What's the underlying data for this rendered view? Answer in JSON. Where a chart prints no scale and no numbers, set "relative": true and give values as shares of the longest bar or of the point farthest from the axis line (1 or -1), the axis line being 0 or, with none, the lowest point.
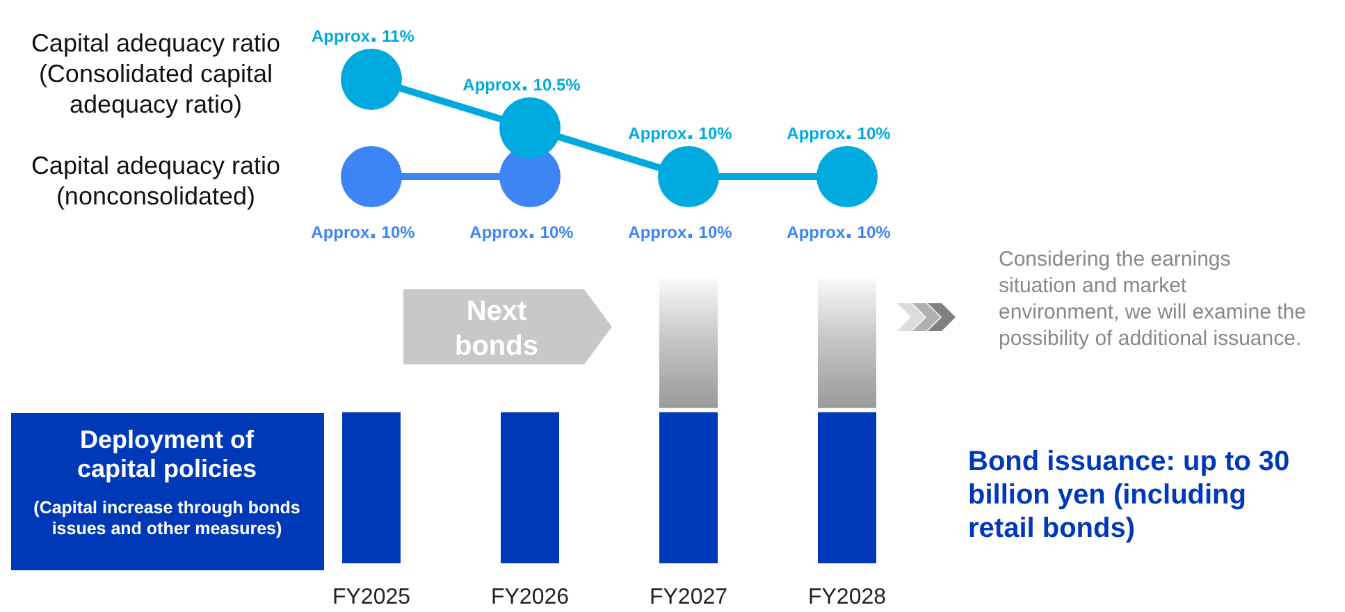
{
  "chart_data": [
    {
      "type": "line",
      "categories": [
        "FY2025",
        "FY2026",
        "FY2027",
        "FY2028"
      ],
      "tick_labels": false,
      "legend": false,
      "marker": "circle",
      "series": [
        {
          "name": "Capital adequacy ratio (Consolidated capital adequacy ratio)",
          "color": "#00aade",
          "values": [
            11,
            10.5,
            10,
            10
          ],
          "value_labels": [
            "Approx. 11%",
            "Approx. 10.5%",
            "Approx. 10%",
            "Approx. 10%"
          ]
        },
        {
          "name": "Capital adequacy ratio (nonconsolidated)",
          "color": "#3d85f5",
          "values": [
            10,
            10,
            null,
            null
          ],
          "value_labels": [
            "Approx. 10%",
            "Approx. 10%",
            null,
            null
          ]
        }
      ],
      "annotations": [
        {
          "text": "Approx. 10%",
          "x": "FY2027",
          "y": 10
        },
        {
          "text": "Approx. 10%",
          "x": "FY2028",
          "y": 10
        }
      ]
    },
    {
      "type": "bar",
      "stacked": true,
      "relative": true,
      "categories": [
        "FY2025",
        "FY2026",
        "FY2027",
        "FY2028"
      ],
      "tick_labels": "x",
      "legend": false,
      "series": [
        {
          "name": "Deployment of capital policies (Capital increase through bonds issues and other measures)",
          "color": "#0039b8",
          "values": [
            0.53,
            0.53,
            0.53,
            0.53
          ]
        },
        {
          "color": "#9a9a9a",
          "values": [
            null,
            null,
            0.47,
            0.47
          ]
        }
      ],
      "annotations": [
        "Next bonds",
        "Considering the earnings situation and market environment, we will examine the possibility of additional issuance.",
        "Bond issuance: up to 30 billion yen (including retail bonds)"
      ]
    }
  ]
}
